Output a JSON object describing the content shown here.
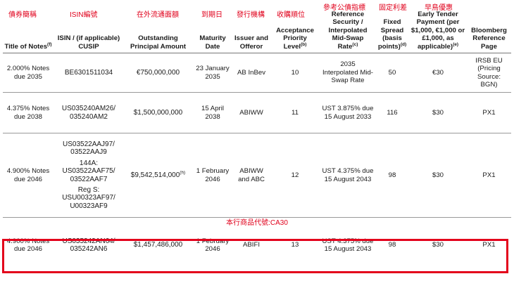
{
  "annotations_cn": {
    "title": "債券簡稱",
    "isin": "ISIN編號",
    "outstanding": "在外流通面額",
    "maturity": "到期日",
    "issuer": "發行機構",
    "acceptance": "收購順位",
    "reference": "參考公債指標",
    "spread": "固定利差",
    "early": "早鳥優惠"
  },
  "headers": {
    "title": "Title of Notes",
    "title_sup": "(f)",
    "isin": "ISIN / (if applicable) CUSIP",
    "outstanding": "Outstanding Principal Amount",
    "maturity": "Maturity Date",
    "issuer": "Issuer and Offeror",
    "acceptance": "Acceptance Priority Level",
    "acceptance_sup": "(b)",
    "reference": "Reference Security / Interpolated Mid-Swap Rate",
    "reference_sup": "(c)",
    "spread": "Fixed Spread (basis points)",
    "spread_sup": "(d)",
    "early": "Early Tender Payment (per $1,000, €1,000 or £1,000, as applicable)",
    "early_sup": "(e)",
    "bloomberg": "Bloomberg Reference Page"
  },
  "rows": [
    {
      "title": "2.000% Notes due 2035",
      "isin": [
        "BE6301511034"
      ],
      "outstanding": "€750,000,000",
      "outstanding_sup": "",
      "maturity": "23 January 2035",
      "issuer": "AB InBev",
      "priority": "10",
      "reference": "2035 Interpolated Mid-Swap Rate",
      "spread": "50",
      "early": "€30",
      "bloomberg": "IRSB EU (Pricing Source: BGN)"
    },
    {
      "title": "4.375% Notes due 2038",
      "isin": [
        "US035240AM26/ 035240AM2"
      ],
      "outstanding": "$1,500,000,000",
      "outstanding_sup": "",
      "maturity": "15 April 2038",
      "issuer": "ABIWW",
      "priority": "11",
      "reference": "UST 3.875% due 15 August 2033",
      "spread": "116",
      "early": "$30",
      "bloomberg": "PX1"
    },
    {
      "title": "4.900% Notes due 2046",
      "isin": [
        "US03522AAJ97/ 03522AAJ9",
        "144A: US03522AAF75/ 03522AAF7",
        "Reg S: USU00323AF97/ U00323AF9"
      ],
      "outstanding": "$9,542,514,000",
      "outstanding_sup": "(h)",
      "maturity": "1 February 2046",
      "issuer": "ABIWW and ABC",
      "priority": "12",
      "reference": "UST 4.375% due 15 August 2043",
      "spread": "98",
      "early": "$30",
      "bloomberg": "PX1"
    },
    {
      "title": "4.900% Notes due 2046",
      "isin": [
        "US035242AN64/ 035242AN6"
      ],
      "outstanding": "$1,457,486,000",
      "outstanding_sup": "",
      "maturity": "1 February 2046",
      "issuer": "ABIFI",
      "priority": "13",
      "reference": "UST 4.375% due 15 August 2043",
      "spread": "98",
      "early": "$30",
      "bloomberg": "PX1"
    }
  ],
  "product_code_note": "本行商品代號:CA30",
  "colors": {
    "annotation": "#e0001b",
    "highlight_border": "#e3001b"
  }
}
